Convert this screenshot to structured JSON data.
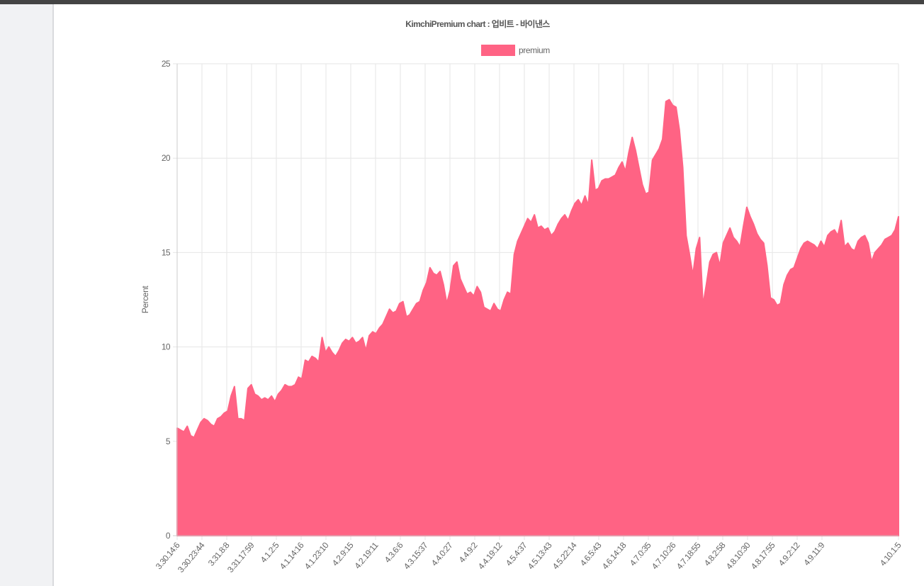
{
  "chart_data": {
    "type": "area",
    "title": "KimchiPremium chart : 업비트 - 바이낸스",
    "ylabel": "Percent",
    "xlabel": "",
    "ylim": [
      0,
      25
    ],
    "y_ticks": [
      0,
      5,
      10,
      15,
      20,
      25
    ],
    "grid": true,
    "legend_position": "top",
    "color": "#ff6384",
    "x_tick_labels": [
      "3.30.14:6",
      "3.30.23:44",
      "3.31.8:8",
      "3.31.17:59",
      "4.1.2:5",
      "4.1.14:16",
      "4.1.23:10",
      "4.2.9:15",
      "4.2.19:11",
      "4.3.6:6",
      "4.3.15:37",
      "4.4.0:27",
      "4.4.9:2",
      "4.4.19:12",
      "4.5.4:37",
      "4.5.13:43",
      "4.5.22:14",
      "4.6.5:43",
      "4.6.14:18",
      "4.7.0:35",
      "4.7.10:26",
      "4.7.18:55",
      "4.8.2:58",
      "4.8.10:30",
      "4.8.17:55",
      "4.9.2:12",
      "4.9.11:9",
      "4.10.1:5"
    ],
    "series": [
      {
        "name": "premium",
        "values": [
          5.7,
          5.6,
          5.5,
          5.8,
          5.3,
          5.2,
          5.6,
          6.0,
          6.2,
          6.1,
          5.9,
          5.8,
          6.2,
          6.3,
          6.5,
          6.6,
          7.4,
          7.9,
          6.2,
          6.2,
          6.1,
          7.8,
          8.0,
          7.5,
          7.4,
          7.2,
          7.3,
          7.2,
          7.4,
          7.1,
          7.5,
          7.7,
          8.0,
          7.9,
          7.9,
          8.0,
          8.4,
          8.3,
          9.3,
          9.2,
          9.5,
          9.4,
          9.2,
          10.5,
          9.7,
          10.0,
          9.7,
          9.5,
          9.8,
          10.2,
          10.4,
          10.3,
          10.5,
          10.2,
          10.3,
          10.5,
          9.8,
          10.6,
          10.8,
          10.7,
          11.0,
          11.2,
          11.6,
          12.0,
          11.8,
          11.9,
          12.3,
          12.4,
          11.6,
          11.7,
          12.0,
          12.3,
          12.4,
          13.0,
          13.4,
          14.2,
          13.9,
          13.8,
          14.0,
          13.3,
          12.3,
          13.0,
          14.3,
          14.5,
          13.6,
          13.2,
          12.8,
          12.9,
          12.7,
          13.2,
          12.9,
          12.1,
          12.0,
          11.9,
          12.3,
          12.0,
          11.9,
          12.5,
          12.9,
          12.8,
          14.9,
          15.6,
          16.0,
          16.4,
          16.8,
          16.6,
          17.0,
          16.3,
          16.4,
          16.2,
          16.3,
          15.9,
          16.1,
          16.5,
          16.8,
          17.0,
          16.7,
          17.2,
          17.6,
          17.8,
          17.5,
          18.0,
          17.5,
          19.9,
          18.3,
          18.4,
          18.8,
          18.9,
          18.9,
          19.0,
          19.1,
          19.5,
          19.8,
          19.3,
          20.3,
          21.1,
          20.4,
          19.5,
          18.6,
          18.1,
          18.2,
          19.9,
          20.2,
          20.5,
          21.0,
          23.0,
          23.1,
          22.8,
          22.7,
          21.5,
          19.5,
          15.9,
          14.9,
          13.8,
          15.2,
          15.8,
          12.2,
          13.3,
          14.5,
          14.9,
          15.0,
          14.3,
          15.5,
          15.9,
          16.3,
          15.8,
          15.6,
          15.3,
          16.4,
          17.4,
          16.9,
          16.5,
          16.0,
          15.7,
          15.5,
          14.3,
          12.6,
          12.5,
          12.2,
          12.3,
          13.3,
          13.8,
          14.1,
          14.2,
          14.7,
          15.2,
          15.5,
          15.6,
          15.5,
          15.4,
          15.2,
          15.6,
          15.3,
          15.9,
          16.1,
          16.2,
          15.9,
          16.7,
          15.3,
          15.5,
          15.2,
          15.1,
          15.6,
          15.8,
          15.9,
          15.5,
          14.5,
          15.0,
          15.2,
          15.4,
          15.7,
          15.8,
          15.9,
          16.2,
          16.9
        ]
      }
    ]
  }
}
